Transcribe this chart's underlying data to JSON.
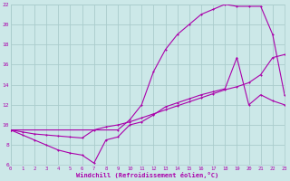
{
  "background_color": "#cce8e8",
  "grid_color": "#aacccc",
  "line_color": "#aa00aa",
  "xlabel": "Windchill (Refroidissement éolien,°C)",
  "xlim": [
    0,
    23
  ],
  "ylim": [
    6,
    22
  ],
  "xticks": [
    0,
    1,
    2,
    3,
    4,
    5,
    6,
    7,
    8,
    9,
    10,
    11,
    12,
    13,
    14,
    15,
    16,
    17,
    18,
    19,
    20,
    21,
    22,
    23
  ],
  "yticks": [
    6,
    8,
    10,
    12,
    14,
    16,
    18,
    20,
    22
  ],
  "line1_x": [
    0,
    1,
    2,
    3,
    4,
    5,
    6,
    7,
    8,
    9,
    10,
    11,
    12,
    13,
    14,
    15,
    16,
    17,
    18,
    19,
    20,
    21,
    22,
    23
  ],
  "line1_y": [
    9.5,
    9.0,
    8.5,
    8.0,
    7.5,
    7.2,
    7.0,
    6.2,
    8.5,
    8.8,
    10.0,
    10.3,
    11.0,
    11.8,
    12.2,
    12.6,
    13.0,
    13.3,
    13.6,
    16.7,
    12.0,
    13.0,
    12.4,
    12.0
  ],
  "line2_x": [
    0,
    9,
    10,
    11,
    12,
    13,
    14,
    15,
    16,
    17,
    18,
    19,
    20,
    21,
    22,
    23
  ],
  "line2_y": [
    9.5,
    9.5,
    10.5,
    12.0,
    15.3,
    17.5,
    19.0,
    20.0,
    21.0,
    21.5,
    22.0,
    21.8,
    21.8,
    21.8,
    19.0,
    13.0
  ],
  "line3_x": [
    0,
    1,
    2,
    3,
    4,
    5,
    6,
    7,
    8,
    9,
    10,
    11,
    12,
    13,
    14,
    15,
    16,
    17,
    18,
    19,
    20,
    21,
    22,
    23
  ],
  "line3_y": [
    9.5,
    9.3,
    9.1,
    9.0,
    8.9,
    8.8,
    8.7,
    9.5,
    9.8,
    10.0,
    10.3,
    10.7,
    11.1,
    11.5,
    11.9,
    12.3,
    12.7,
    13.1,
    13.5,
    13.8,
    14.2,
    15.0,
    16.7,
    17.0
  ]
}
